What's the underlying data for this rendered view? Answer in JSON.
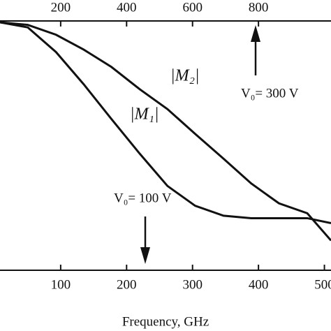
{
  "chart_data": {
    "type": "line",
    "x_label": "Frequency, GHz",
    "x": [
      8,
      50,
      93,
      135,
      177,
      220,
      262,
      304,
      347,
      389,
      431,
      474,
      510
    ],
    "series": [
      {
        "name": "|M₁|",
        "color": "#111111",
        "values": [
          1.0,
          0.98,
          0.88,
          0.75,
          0.61,
          0.47,
          0.34,
          0.26,
          0.22,
          0.21,
          0.21,
          0.21,
          0.19
        ]
      },
      {
        "name": "|M₂|",
        "color": "#111111",
        "values": [
          1.0,
          0.99,
          0.95,
          0.89,
          0.82,
          0.73,
          0.65,
          0.55,
          0.45,
          0.35,
          0.27,
          0.23,
          0.12
        ]
      }
    ],
    "xlim": [
      8,
      510
    ],
    "xticks": [
      100,
      200,
      300,
      400,
      500
    ],
    "x2lim": [
      16,
      1020
    ],
    "x2ticks": [
      200,
      400,
      600,
      800
    ],
    "ylim": [
      0,
      1
    ],
    "annotations": [
      "V₀= 300 V",
      "V₀= 100 V"
    ]
  }
}
